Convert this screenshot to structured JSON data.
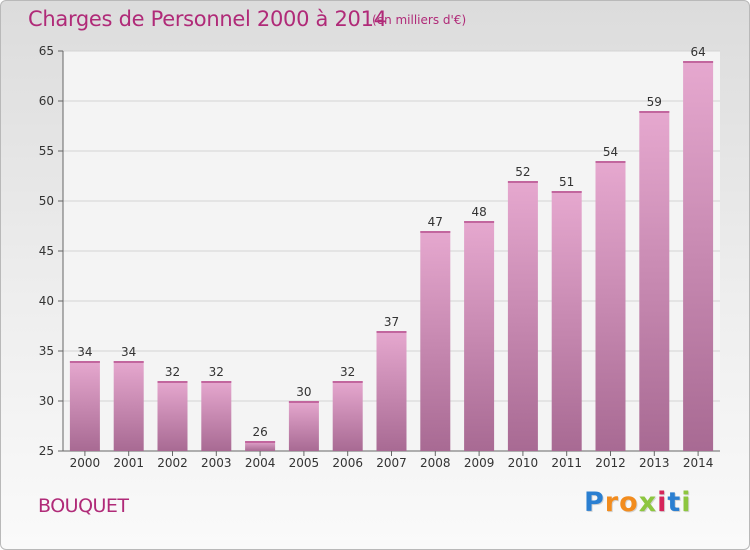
{
  "chart_data": {
    "type": "bar",
    "title": "Charges de Personnel 2000 à 2014",
    "unit_note": "(en milliers d'€)",
    "categories": [
      "2000",
      "2001",
      "2002",
      "2003",
      "2004",
      "2005",
      "2006",
      "2007",
      "2008",
      "2009",
      "2010",
      "2011",
      "2012",
      "2013",
      "2014"
    ],
    "values": [
      34,
      34,
      32,
      32,
      26,
      30,
      32,
      37,
      47,
      48,
      52,
      51,
      54,
      59,
      64
    ],
    "ylim": [
      25,
      65
    ],
    "yticks": [
      25,
      30,
      35,
      40,
      45,
      50,
      55,
      60,
      65
    ],
    "xlabel": "",
    "ylabel": "",
    "grid": true,
    "bar_color_top": "#e6a8cf",
    "bar_color_bottom": "#a86a93"
  },
  "commune": "BOUQUET",
  "logo": {
    "letters": [
      "P",
      "r",
      "o",
      "x",
      "i",
      "t",
      "i"
    ],
    "colors": [
      "#2b7fd1",
      "#f28c1e",
      "#f28c1e",
      "#8dc63f",
      "#d6265b",
      "#2b7fd1",
      "#8dc63f"
    ]
  }
}
